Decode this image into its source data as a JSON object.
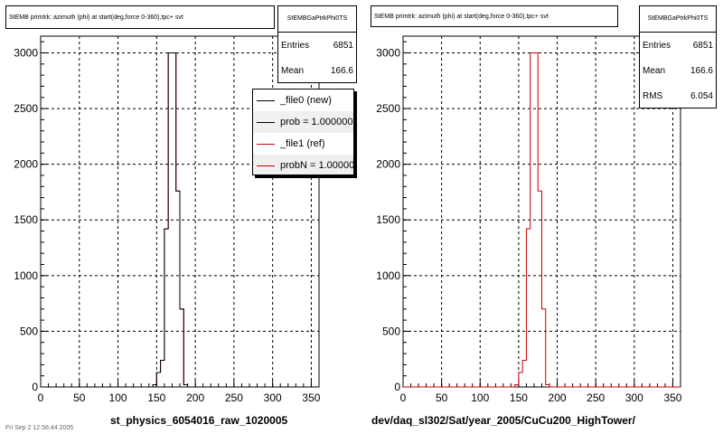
{
  "colors": {
    "new": "#000000",
    "ref": "#cc0000",
    "frame": "#000000",
    "grid": "#000000"
  },
  "left_pad": {
    "title": "StEMB primtrk: azimuth (phi) at start(deg,force 0-360),tpc+ svt",
    "stats": {
      "name": "StEMBGaPtrkPhi0TS",
      "entries_label": "Entries",
      "entries": "6851",
      "mean_label": "Mean",
      "mean": "166.6"
    },
    "legend": [
      {
        "label": "_file0 (new)",
        "color": "#000000"
      },
      {
        "label": "prob = 1.000000",
        "color": "#000000"
      },
      {
        "label": "_file1 (ref)",
        "color": "#cc0000"
      },
      {
        "label": "probN = 1.000000",
        "color": "#cc0000"
      }
    ],
    "xtitle": "st_physics_6054016_raw_1020005"
  },
  "right_pad": {
    "title": "StEMB primtrk: azimuth (phi) at start(deg,force 0-360),tpc+ svt",
    "stats": {
      "name": "StEMBGaPtrkPhi0TS",
      "entries_label": "Entries",
      "entries": "6851",
      "mean_label": "Mean",
      "mean": "166.6",
      "rms_label": "RMS",
      "rms": "6.054"
    },
    "xtitle": "dev/daq_sl302/Sat/year_2005/CuCu200_HighTower/"
  },
  "footer": "Fri Sep 2 12:56:44 2005",
  "chart_data": [
    {
      "type": "line",
      "title": "StEMB primtrk: azimuth (phi) at start(deg,force 0-360),tpc+ svt",
      "xlabel": "st_physics_6054016_raw_1020005",
      "xlim": [
        0,
        360
      ],
      "ylim": [
        0,
        3150
      ],
      "xticks": [
        0,
        50,
        100,
        150,
        200,
        250,
        300,
        350
      ],
      "yticks": [
        0,
        500,
        1000,
        1500,
        2000,
        2500,
        3000
      ],
      "grid": true,
      "legend_position": "top-right",
      "bin_width": 5,
      "series": [
        {
          "name": "_file1 (ref)",
          "color": "#cc0000",
          "x": [
            140,
            145,
            150,
            155,
            160,
            165,
            170,
            175,
            180,
            185,
            190,
            195
          ],
          "values": [
            0,
            20,
            130,
            240,
            1420,
            3000,
            3000,
            1760,
            700,
            20,
            0,
            0
          ]
        },
        {
          "name": "_file0 (new)",
          "color": "#000000",
          "x": [
            140,
            145,
            150,
            155,
            160,
            165,
            170,
            175,
            180,
            185,
            190,
            195
          ],
          "values": [
            0,
            20,
            130,
            240,
            1420,
            3000,
            3000,
            1760,
            700,
            20,
            0,
            0
          ]
        }
      ]
    },
    {
      "type": "line",
      "title": "StEMB primtrk: azimuth (phi) at start(deg,force 0-360),tpc+ svt",
      "xlabel": "dev/daq_sl302/Sat/year_2005/CuCu200_HighTower/",
      "xlim": [
        0,
        360
      ],
      "ylim": [
        0,
        3150
      ],
      "xticks": [
        0,
        50,
        100,
        150,
        200,
        250,
        300,
        350
      ],
      "yticks": [
        0,
        500,
        1000,
        1500,
        2000,
        2500,
        3000
      ],
      "grid": true,
      "bin_width": 5,
      "series": [
        {
          "color": "#cc0000",
          "x": [
            140,
            145,
            150,
            155,
            160,
            165,
            170,
            175,
            180,
            185,
            190,
            195
          ],
          "values": [
            0,
            20,
            130,
            240,
            1420,
            3000,
            3000,
            1760,
            700,
            20,
            0,
            0
          ]
        }
      ]
    }
  ]
}
